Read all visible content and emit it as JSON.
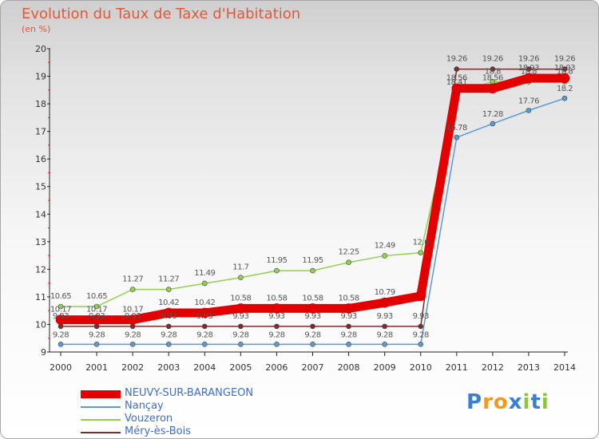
{
  "title": "Evolution du Taux de Taxe d'Habitation",
  "subtitle": "(en %)",
  "brand": {
    "text": "Proxiti",
    "colors": [
      "#3a7fd6",
      "#f29a1f",
      "#f29a1f",
      "#3a7fd6",
      "#8cc63f",
      "#3a7fd6",
      "#8cc63f"
    ]
  },
  "chart_data": {
    "type": "line",
    "x": [
      "2000",
      "2001",
      "2002",
      "2003",
      "2004",
      "2005",
      "2006",
      "2007",
      "2008",
      "2009",
      "2010",
      "2011",
      "2012",
      "2013",
      "2014"
    ],
    "yticks": [
      9,
      10,
      11,
      12,
      13,
      14,
      15,
      16,
      17,
      18,
      19,
      20
    ],
    "ylim": [
      9,
      20
    ],
    "grid": false,
    "legend_position": "bottom-left",
    "series": [
      {
        "name": "NEUVY-SUR-BARANGEON",
        "color": "#e30000",
        "values": [
          10.17,
          10.17,
          10.17,
          10.42,
          10.42,
          10.58,
          10.58,
          10.58,
          10.58,
          10.79,
          11.03,
          18.56,
          18.56,
          18.93,
          18.93
        ],
        "labels": [
          "10.17",
          "10.17",
          "10.17",
          "10.42",
          "10.42",
          "10.58",
          "10.58",
          "10.58",
          "10.58",
          "10.79",
          "",
          "18.56",
          "18.56",
          "18.93",
          "18.93"
        ]
      },
      {
        "name": "Nançay",
        "color": "#5b9bd5",
        "values": [
          9.28,
          9.28,
          9.28,
          9.28,
          9.28,
          9.28,
          9.28,
          9.28,
          9.28,
          9.28,
          9.28,
          16.78,
          17.28,
          17.76,
          18.2
        ],
        "labels": [
          "9.28",
          "9.28",
          "9.28",
          "9.28",
          "9.28",
          "9.28",
          "9.28",
          "9.28",
          "9.28",
          "9.28",
          "9.28",
          "16.78",
          "17.28",
          "17.76",
          "18.2"
        ]
      },
      {
        "name": "Vouzeron",
        "color": "#92d050",
        "values": [
          10.65,
          10.65,
          11.27,
          11.27,
          11.49,
          11.7,
          11.95,
          11.95,
          12.25,
          12.49,
          12.6,
          18.41,
          18.8,
          18.8,
          18.8
        ],
        "labels": [
          "10.65",
          "10.65",
          "11.27",
          "11.27",
          "11.49",
          "11.7",
          "11.95",
          "11.95",
          "12.25",
          "12.49",
          "12.6",
          "18.41",
          "18.8",
          "18.8",
          "18.8"
        ]
      },
      {
        "name": "Méry-ès-Bois",
        "color": "#7b2c2c",
        "values": [
          9.93,
          9.93,
          9.93,
          9.93,
          9.93,
          9.93,
          9.93,
          9.93,
          9.93,
          9.93,
          9.93,
          19.26,
          19.26,
          19.26,
          19.26
        ],
        "labels": [
          "9.93",
          "9.93",
          "9.93",
          "9.93",
          "9.93",
          "9.93",
          "9.93",
          "9.93",
          "9.93",
          "9.93",
          "9.93",
          "19.26",
          "19.26",
          "19.26",
          "19.26"
        ]
      }
    ]
  }
}
